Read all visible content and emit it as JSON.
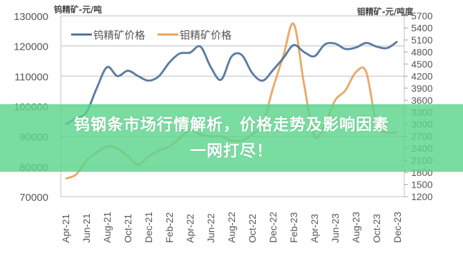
{
  "chart_data": {
    "type": "line",
    "ylabel_left": "钨精矿-元/吨",
    "ylabel_right": "钼精矿-元/吨度",
    "ylim_left": [
      70000,
      130000
    ],
    "yticks_left": [
      130000,
      120000,
      110000,
      100000,
      90000,
      80000,
      70000
    ],
    "ylim_right": [
      1200,
      5700
    ],
    "yticks_right": [
      5700,
      5400,
      5100,
      4800,
      4500,
      4200,
      3900,
      3600,
      3300,
      3000,
      2700,
      2400,
      2100,
      1800,
      1500,
      1200
    ],
    "xtick_labels": [
      "Apr-21",
      "Jun-21",
      "Aug-21",
      "Oct-21",
      "Dec-21",
      "Feb-22",
      "Apr-22",
      "Jun-22",
      "Aug-22",
      "Oct-22",
      "Dec-22",
      "Feb-23",
      "Apr-23",
      "Jun-23",
      "Aug-23",
      "Oct-23",
      "Dec-23"
    ],
    "x": [
      "Apr-21",
      "May-21",
      "Jun-21",
      "Jul-21",
      "Aug-21",
      "Sep-21",
      "Oct-21",
      "Nov-21",
      "Dec-21",
      "Jan-22",
      "Feb-22",
      "Mar-22",
      "Apr-22",
      "May-22",
      "Jun-22",
      "Jul-22",
      "Aug-22",
      "Sep-22",
      "Oct-22",
      "Nov-22",
      "Dec-22",
      "Jan-23",
      "Feb-23",
      "Mar-23",
      "Apr-23",
      "May-23",
      "Jun-23",
      "Jul-23",
      "Aug-23",
      "Sep-23",
      "Oct-23",
      "Nov-23",
      "Dec-23"
    ],
    "series": [
      {
        "name": "钨精矿价格",
        "axis": "left",
        "color": "#4a6f9a",
        "values": [
          94000,
          96000,
          98000,
          106000,
          113000,
          110000,
          111800,
          110000,
          108500,
          110000,
          114500,
          117500,
          117800,
          119800,
          113000,
          108800,
          116500,
          117000,
          111000,
          108500,
          112000,
          116000,
          120300,
          118000,
          116600,
          120500,
          120800,
          119000,
          119500,
          121000,
          119800,
          119300,
          121500
        ]
      },
      {
        "name": "钼精矿价格",
        "axis": "right",
        "color": "#e8a05a",
        "values": [
          1650,
          1750,
          2100,
          2300,
          2450,
          2400,
          2200,
          2000,
          2200,
          2350,
          2450,
          2650,
          2850,
          2750,
          2700,
          2700,
          2600,
          2600,
          2750,
          3000,
          3900,
          4700,
          5500,
          4000,
          2700,
          3000,
          3600,
          3850,
          4300,
          4300,
          3000,
          2800,
          2800
        ]
      }
    ],
    "legend": "top-left",
    "grid": true
  },
  "banner": {
    "line1": "钨钢条市场行情解析，价格走势及影响因素",
    "line2": "一网打尽！"
  }
}
